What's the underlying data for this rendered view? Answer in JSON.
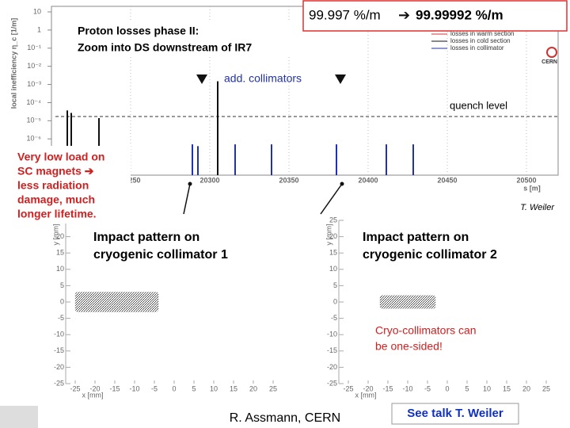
{
  "headline": {
    "from": "99.997 %/m",
    "arrow": "➔",
    "to": "99.99992 %/m"
  },
  "logo": "CERN",
  "sc_note": [
    "Very low load on",
    "SC magnets ➔",
    "less radiation",
    "damage, much",
    "longer lifetime."
  ],
  "cryo_note": [
    "Cryo-collimators can",
    "be one-sided!"
  ],
  "footer": {
    "author": "R. Assmann, CERN",
    "link": "See talk T. Weiler"
  },
  "chart_data": [
    {
      "type": "spike",
      "title": [
        "Proton losses phase II:",
        "Zoom into DS downstream of IR7"
      ],
      "x_label": "s [m]",
      "y_label": "local inefficiency η_c [1/m]",
      "log_y": true,
      "grid": true,
      "legend": "top-right",
      "xlim": [
        20202.5,
        20520
      ],
      "ylim": [
        1e-08,
        10
      ],
      "xticks": [
        20250,
        20300,
        20350,
        20400,
        20450,
        20500
      ],
      "yticks": [
        10,
        1,
        {
          "value": 0.1,
          "label": "10⁻¹"
        },
        {
          "value": 0.01,
          "label": "10⁻²"
        },
        {
          "value": 0.001,
          "label": "10⁻³"
        },
        {
          "value": 0.0001,
          "label": "10⁻⁴"
        },
        {
          "value": 1e-05,
          "label": "10⁻⁵"
        },
        {
          "value": 1e-06,
          "label": "10⁻⁶"
        }
      ],
      "series": [
        {
          "name": "losses in warm section",
          "color": "#e03030",
          "x": [],
          "values": []
        },
        {
          "name": "losses in cold section",
          "color": "#111111",
          "x": [
            20210,
            20212.5,
            20230,
            20305
          ],
          "values": [
            3.7e-05,
            2.7e-05,
            1.4e-05,
            0.0015
          ]
        },
        {
          "name": "losses in collimator",
          "color": "#2233aa",
          "x": [
            20289,
            20292.5,
            20316,
            20339,
            20380,
            20411.5,
            20428.5
          ],
          "values": [
            5e-07,
            4e-07,
            5e-07,
            5e-07,
            5e-07,
            5e-07,
            5e-07
          ]
        }
      ],
      "quench_level": 1.7e-05,
      "quench_label": "quench level",
      "annotation": "add. collimators",
      "credit": "T. Weiler"
    },
    {
      "type": "density",
      "title": [
        "Impact pattern on",
        "cryogenic collimator 1"
      ],
      "x_label": "x [mm]",
      "y_label": "y [mm]",
      "color": "#222222",
      "xlim": [
        -25,
        25
      ],
      "ylim": [
        -25,
        25
      ],
      "xticks": [
        -25,
        -20,
        -15,
        -10,
        -5,
        0,
        5,
        10,
        15,
        20,
        25
      ],
      "yticks": [
        -25,
        -20,
        -15,
        -10,
        -5,
        0,
        5,
        10,
        15,
        20,
        25
      ],
      "x_range": [
        -25,
        -4
      ],
      "y_range": [
        -3,
        3
      ]
    },
    {
      "type": "density",
      "title": [
        "Impact pattern on",
        "cryogenic collimator 2"
      ],
      "x_label": "x [mm]",
      "y_label": "y [mm]",
      "color": "#222222",
      "xlim": [
        -25,
        25
      ],
      "ylim": [
        -25,
        25
      ],
      "xticks": [
        -25,
        -20,
        -15,
        -10,
        -5,
        0,
        5,
        10,
        15,
        20,
        25
      ],
      "yticks": [
        -25,
        -20,
        -15,
        -10,
        -5,
        0,
        5,
        10,
        15,
        20,
        25
      ],
      "x_range": [
        -17,
        -3
      ],
      "y_range": [
        -2,
        2
      ]
    }
  ]
}
